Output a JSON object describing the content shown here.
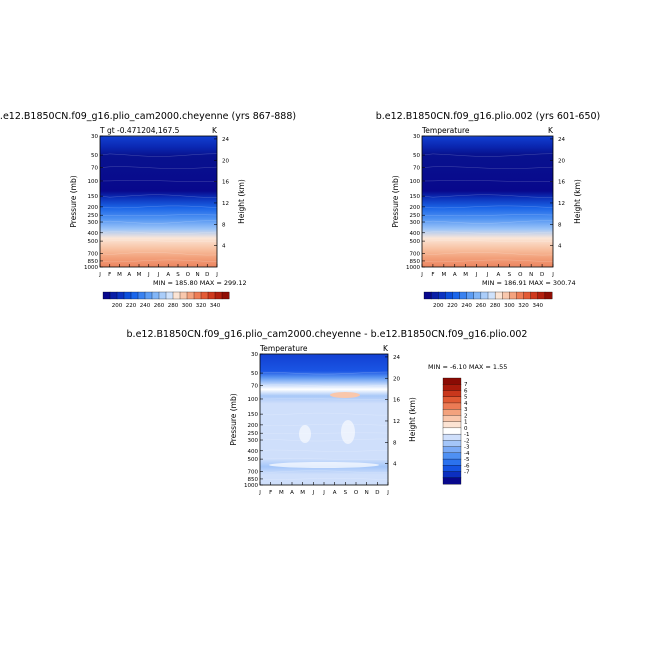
{
  "colors": {
    "abs_palette": [
      "#08088c",
      "#0a1fa6",
      "#0b33c0",
      "#0c4fdb",
      "#1a66ea",
      "#3a82f0",
      "#5d9df4",
      "#82b6f7",
      "#aacdf9",
      "#cfe2fb",
      "#fbe4d4",
      "#f9c8ad",
      "#f4a37f",
      "#ee7d56",
      "#e35b36",
      "#cf3a1e",
      "#b2200f",
      "#8f0e05"
    ],
    "diff_palette": [
      "#08088c",
      "#0c2fc0",
      "#1553e2",
      "#2b72ee",
      "#4f90f3",
      "#7aaaf6",
      "#a4c6f9",
      "#cfdffb",
      "#ffffff",
      "#fce3d3",
      "#f9c7ac",
      "#f3a27d",
      "#ec7b55",
      "#e05a34",
      "#c9371c",
      "#a81a0b",
      "#8a0b04"
    ]
  },
  "chart_data": [
    {
      "type": "heatmap",
      "title": "b.e12.B1850CN.f09_g16.plio_cam2000.cheyenne (yrs 867-888)",
      "left_label": "T gt -0.471204,167.5",
      "right_label": "K",
      "ylabel": "Pressure (mb)",
      "ylabel_right": "Height (km)",
      "x_ticks": [
        "J",
        "F",
        "M",
        "A",
        "M",
        "J",
        "J",
        "A",
        "S",
        "O",
        "N",
        "D",
        "J"
      ],
      "y_ticks": [
        "30",
        "50",
        "70",
        "100",
        "150",
        "200",
        "250",
        "300",
        "400",
        "500",
        "700",
        "850",
        "1000"
      ],
      "y_ticks_right": [
        "24",
        "20",
        "16",
        "12",
        "8",
        "4"
      ],
      "stats": "MIN = 185.80  MAX = 299.12",
      "colorbar_labels": [
        "200",
        "220",
        "240",
        "260",
        "280",
        "300",
        "320",
        "340"
      ],
      "level_pressures": [
        1000,
        850,
        700,
        500,
        400,
        300,
        250,
        200,
        150,
        100,
        70,
        50,
        30
      ],
      "temperature_K": [
        291,
        283,
        277,
        262,
        251,
        236,
        228,
        221,
        214,
        196,
        198,
        205,
        214
      ]
    },
    {
      "type": "heatmap",
      "title": "b.e12.B1850CN.f09_g16.plio.002 (yrs 601-650)",
      "left_label": "Temperature",
      "right_label": "K",
      "ylabel": "Pressure (mb)",
      "ylabel_right": "Height (km)",
      "x_ticks": [
        "J",
        "F",
        "M",
        "A",
        "M",
        "J",
        "J",
        "A",
        "S",
        "O",
        "N",
        "D",
        "J"
      ],
      "y_ticks": [
        "30",
        "50",
        "70",
        "100",
        "150",
        "200",
        "250",
        "300",
        "400",
        "500",
        "700",
        "850",
        "1000"
      ],
      "y_ticks_right": [
        "24",
        "20",
        "16",
        "12",
        "8",
        "4"
      ],
      "stats": "MIN = 186.91  MAX = 300.74",
      "colorbar_labels": [
        "200",
        "220",
        "240",
        "260",
        "280",
        "300",
        "320",
        "340"
      ],
      "level_pressures": [
        1000,
        850,
        700,
        500,
        400,
        300,
        250,
        200,
        150,
        100,
        70,
        50,
        30
      ],
      "temperature_K": [
        292,
        284,
        278,
        263,
        252,
        237,
        229,
        222,
        215,
        197,
        199,
        206,
        214
      ]
    },
    {
      "type": "heatmap",
      "title": "b.e12.B1850CN.f09_g16.plio_cam2000.cheyenne - b.e12.B1850CN.f09_g16.plio.002",
      "left_label": "Temperature",
      "right_label": "K",
      "ylabel": "Pressure (mb)",
      "ylabel_right": "Height (km)",
      "x_ticks": [
        "J",
        "F",
        "M",
        "A",
        "M",
        "J",
        "J",
        "A",
        "S",
        "O",
        "N",
        "D",
        "J"
      ],
      "y_ticks": [
        "30",
        "50",
        "70",
        "100",
        "150",
        "200",
        "250",
        "300",
        "400",
        "500",
        "700",
        "850",
        "1000"
      ],
      "y_ticks_right": [
        "24",
        "20",
        "16",
        "12",
        "8",
        "4"
      ],
      "stats": "MIN =  -6.10 MAX =   1.55",
      "colorbar_labels": [
        "7",
        "6",
        "5",
        "4",
        "3",
        "2",
        "1",
        "0",
        "-1",
        "-2",
        "-3",
        "-4",
        "-5",
        "-6",
        "-7"
      ],
      "level_pressures": [
        1000,
        850,
        700,
        500,
        400,
        300,
        250,
        200,
        150,
        100,
        70,
        50,
        30
      ],
      "difference_K": [
        -1,
        -2,
        -2,
        -1,
        -1,
        -1,
        -1,
        -1,
        -1,
        -1,
        1,
        -4,
        -5
      ]
    }
  ]
}
